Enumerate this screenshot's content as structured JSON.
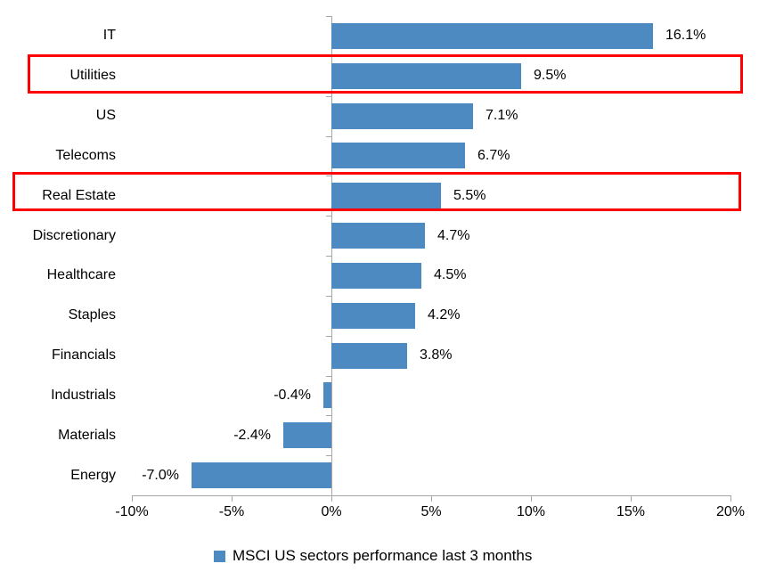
{
  "chart_data": {
    "type": "bar",
    "orientation": "horizontal",
    "title": "",
    "categories": [
      "IT",
      "Utilities",
      "US",
      "Telecoms",
      "Real Estate",
      "Discretionary",
      "Healthcare",
      "Staples",
      "Financials",
      "Industrials",
      "Materials",
      "Energy"
    ],
    "values": [
      16.1,
      9.5,
      7.1,
      6.7,
      5.5,
      4.7,
      4.5,
      4.2,
      3.8,
      -0.4,
      -2.4,
      -7.0
    ],
    "value_labels": [
      "16.1%",
      "9.5%",
      "7.1%",
      "6.7%",
      "5.5%",
      "4.7%",
      "4.5%",
      "4.2%",
      "3.8%",
      "-0.4%",
      "-2.4%",
      "-7.0%"
    ],
    "xlim": [
      -10,
      20
    ],
    "x_tick_values": [
      -10,
      -5,
      0,
      5,
      10,
      15,
      20
    ],
    "x_tick_labels": [
      "-10%",
      "-5%",
      "0%",
      "5%",
      "10%",
      "15%",
      "20%"
    ],
    "grid": false,
    "legend_position": "bottom-center",
    "highlighted_categories": [
      "Utilities",
      "Real Estate"
    ]
  },
  "legend": {
    "label": "MSCI US sectors performance last 3 months",
    "swatch_icon": "square-swatch"
  },
  "colors": {
    "bar": "#4E8AC2",
    "axis": "#A6A6A6",
    "highlight_box": "#FF0000",
    "text": "#000000",
    "background": "#FFFFFF"
  }
}
